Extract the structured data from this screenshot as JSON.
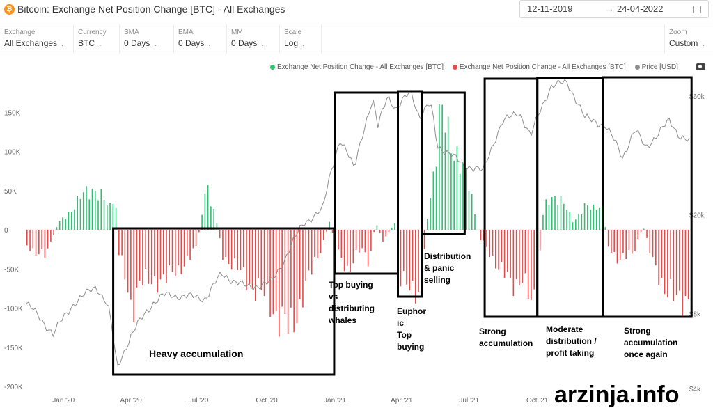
{
  "header": {
    "title": "Bitcoin: Exchange Net Position Change [BTC] - All Exchanges",
    "date_from": "12-11-2019",
    "date_arrow": "→",
    "date_to": "24-04-2022"
  },
  "toolbar": [
    {
      "label": "Exchange",
      "value": "All Exchanges"
    },
    {
      "label": "Currency",
      "value": "BTC"
    },
    {
      "label": "SMA",
      "value": "0 Days"
    },
    {
      "label": "EMA",
      "value": "0 Days"
    },
    {
      "label": "MM",
      "value": "0 Days"
    },
    {
      "label": "Scale",
      "value": "Log"
    },
    {
      "label": "Zoom",
      "value": "Custom"
    }
  ],
  "colors": {
    "positive": "#2fbf71",
    "negative": "#e84a4a",
    "price": "#8e8e8e",
    "box": "#000000"
  },
  "legend": {
    "items": [
      {
        "label": "Exchange Net Position Change - All Exchanges [BTC]",
        "color": "#2fbf71"
      },
      {
        "label": "Exchange Net Position Change - All Exchanges [BTC]",
        "color": "#e84a4a"
      },
      {
        "label": "Price [USD]",
        "color": "#8e8e8e"
      }
    ]
  },
  "chart_data": {
    "type": "bar",
    "title": "Bitcoin: Exchange Net Position Change [BTC] - All Exchanges",
    "x_range": [
      "2019-11-12",
      "2022-04-24"
    ],
    "ylim": [
      -200000,
      200000
    ],
    "yticks": [
      150000,
      100000,
      50000,
      0,
      -50000,
      -100000,
      -150000,
      -200000
    ],
    "ytick_labels": [
      "150K",
      "100K",
      "50K",
      "0",
      "-50K",
      "-100K",
      "-150K",
      "-200K"
    ],
    "y2_scale": "log",
    "y2ticks": [
      60000,
      20000,
      8000,
      4000
    ],
    "y2tick_labels": [
      "$60k",
      "$20k",
      "$8k",
      "$4k"
    ],
    "xticks": [
      "2020-01-01",
      "2020-04-01",
      "2020-07-01",
      "2020-10-01",
      "2021-01-01",
      "2021-04-01",
      "2021-07-01",
      "2021-10-01",
      "2022-01-01",
      "2022-04-01"
    ],
    "xtick_labels": [
      "Jan '20",
      "Apr '20",
      "Jul '20",
      "Oct '20",
      "Jan '21",
      "Apr '21",
      "Jul '21",
      "Oct '21",
      "Jan '22",
      "Apr '22"
    ],
    "net_position_change_keypoints": [
      [
        "2019-11-12",
        -20000
      ],
      [
        "2019-11-28",
        -30000
      ],
      [
        "2019-12-08",
        -35000
      ],
      [
        "2019-12-16",
        -10000
      ],
      [
        "2019-12-24",
        8000
      ],
      [
        "2020-01-10",
        25000
      ],
      [
        "2020-01-28",
        45000
      ],
      [
        "2020-02-10",
        55000
      ],
      [
        "2020-02-22",
        40000
      ],
      [
        "2020-03-02",
        25000
      ],
      [
        "2020-03-10",
        50000
      ],
      [
        "2020-03-14",
        -30000
      ],
      [
        "2020-03-22",
        -50000
      ],
      [
        "2020-04-02",
        -100000
      ],
      [
        "2020-04-14",
        -70000
      ],
      [
        "2020-04-28",
        -60000
      ],
      [
        "2020-05-14",
        -70000
      ],
      [
        "2020-05-28",
        -50000
      ],
      [
        "2020-06-14",
        -45000
      ],
      [
        "2020-06-28",
        -20000
      ],
      [
        "2020-07-04",
        15000
      ],
      [
        "2020-07-12",
        55000
      ],
      [
        "2020-07-20",
        30000
      ],
      [
        "2020-07-26",
        5000
      ],
      [
        "2020-08-01",
        -30000
      ],
      [
        "2020-08-20",
        -50000
      ],
      [
        "2020-09-10",
        -70000
      ],
      [
        "2020-09-26",
        -85000
      ],
      [
        "2020-10-10",
        -100000
      ],
      [
        "2020-10-24",
        -120000
      ],
      [
        "2020-11-01",
        -135000
      ],
      [
        "2020-11-08",
        -110000
      ],
      [
        "2020-11-18",
        -80000
      ],
      [
        "2020-12-02",
        -50000
      ],
      [
        "2020-12-14",
        -20000
      ],
      [
        "2020-12-24",
        10000
      ],
      [
        "2021-01-04",
        -30000
      ],
      [
        "2021-01-18",
        -50000
      ],
      [
        "2021-02-04",
        -25000
      ],
      [
        "2021-02-16",
        -40000
      ],
      [
        "2021-02-24",
        10000
      ],
      [
        "2021-03-06",
        -15000
      ],
      [
        "2021-03-22",
        8000
      ],
      [
        "2021-03-30",
        -60000
      ],
      [
        "2021-04-14",
        -85000
      ],
      [
        "2021-04-26",
        -70000
      ],
      [
        "2021-05-04",
        10000
      ],
      [
        "2021-05-14",
        80000
      ],
      [
        "2021-05-22",
        150000
      ],
      [
        "2021-06-04",
        110000
      ],
      [
        "2021-06-16",
        100000
      ],
      [
        "2021-06-28",
        60000
      ],
      [
        "2021-07-06",
        30000
      ],
      [
        "2021-07-14",
        -10000
      ],
      [
        "2021-07-26",
        -25000
      ],
      [
        "2021-08-10",
        -50000
      ],
      [
        "2021-08-26",
        -70000
      ],
      [
        "2021-09-10",
        -60000
      ],
      [
        "2021-09-22",
        -100000
      ],
      [
        "2021-10-01",
        -80000
      ],
      [
        "2021-10-06",
        10000
      ],
      [
        "2021-10-14",
        40000
      ],
      [
        "2021-10-24",
        45000
      ],
      [
        "2021-11-06",
        30000
      ],
      [
        "2021-11-18",
        10000
      ],
      [
        "2021-12-02",
        30000
      ],
      [
        "2021-12-14",
        25000
      ],
      [
        "2021-12-26",
        35000
      ],
      [
        "2022-01-04",
        -20000
      ],
      [
        "2022-01-20",
        -40000
      ],
      [
        "2022-02-06",
        -30000
      ],
      [
        "2022-02-20",
        5000
      ],
      [
        "2022-03-04",
        -40000
      ],
      [
        "2022-03-20",
        -70000
      ],
      [
        "2022-04-06",
        -95000
      ],
      [
        "2022-04-24",
        -80000
      ]
    ],
    "price_keypoints": [
      [
        "2019-11-12",
        8800
      ],
      [
        "2019-12-18",
        6600
      ],
      [
        "2020-01-15",
        8800
      ],
      [
        "2020-02-14",
        10300
      ],
      [
        "2020-03-01",
        8600
      ],
      [
        "2020-03-13",
        4800
      ],
      [
        "2020-04-01",
        6500
      ],
      [
        "2020-04-30",
        8800
      ],
      [
        "2020-05-15",
        9500
      ],
      [
        "2020-06-15",
        9400
      ],
      [
        "2020-07-10",
        9200
      ],
      [
        "2020-08-01",
        11500
      ],
      [
        "2020-09-05",
        10200
      ],
      [
        "2020-10-08",
        10700
      ],
      [
        "2020-10-24",
        13000
      ],
      [
        "2020-11-20",
        18500
      ],
      [
        "2020-12-16",
        21000
      ],
      [
        "2021-01-08",
        40000
      ],
      [
        "2021-01-27",
        30500
      ],
      [
        "2021-02-21",
        57000
      ],
      [
        "2021-02-28",
        45000
      ],
      [
        "2021-03-13",
        61000
      ],
      [
        "2021-03-25",
        52000
      ],
      [
        "2021-04-13",
        63500
      ],
      [
        "2021-04-25",
        49000
      ],
      [
        "2021-05-10",
        56000
      ],
      [
        "2021-05-19",
        38000
      ],
      [
        "2021-06-22",
        32000
      ],
      [
        "2021-07-20",
        29800
      ],
      [
        "2021-08-15",
        47000
      ],
      [
        "2021-09-06",
        52000
      ],
      [
        "2021-09-22",
        41000
      ],
      [
        "2021-10-20",
        66000
      ],
      [
        "2021-11-10",
        68000
      ],
      [
        "2021-12-04",
        49000
      ],
      [
        "2021-12-31",
        46000
      ],
      [
        "2022-01-24",
        34000
      ],
      [
        "2022-02-10",
        44000
      ],
      [
        "2022-02-24",
        37000
      ],
      [
        "2022-03-28",
        47500
      ],
      [
        "2022-04-10",
        42000
      ],
      [
        "2022-04-24",
        39500
      ]
    ],
    "annotations": [
      {
        "from": "2020-03-08",
        "to": "2020-12-31",
        "text": "Heavy accumulation"
      },
      {
        "from": "2021-01-01",
        "to": "2021-03-27",
        "text": "Top buying vs distributing whales"
      },
      {
        "from": "2021-03-27",
        "to": "2021-04-28",
        "text": "Euphoric Top buying"
      },
      {
        "from": "2021-04-28",
        "to": "2021-06-25",
        "text": "Distribution & panic selling"
      },
      {
        "from": "2021-07-22",
        "to": "2021-10-01",
        "text": "Strong accumulation"
      },
      {
        "from": "2021-10-01",
        "to": "2021-12-29",
        "text": "Moderate distribution / profit taking"
      },
      {
        "from": "2021-12-29",
        "to": "2022-04-27",
        "text": "Strong accumulation once again"
      }
    ]
  },
  "watermark": "arzinja.info"
}
